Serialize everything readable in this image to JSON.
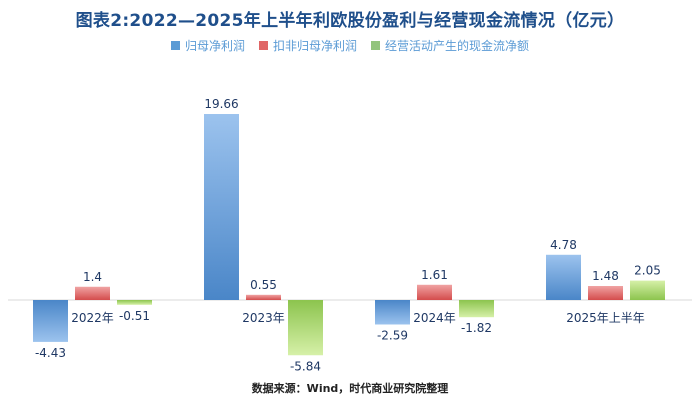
{
  "chart_data": {
    "type": "bar",
    "title": "图表2:2022—2025年上半年利欧股份盈利与经营现金流情况（亿元）",
    "categories": [
      "2022年",
      "2023年",
      "2024年",
      "2025年上半年"
    ],
    "series": [
      {
        "name": "归母净利润",
        "values": [
          -4.43,
          19.66,
          -2.59,
          4.78
        ],
        "color": "#5b9bd5"
      },
      {
        "name": "扣非归母净利润",
        "values": [
          1.4,
          0.55,
          1.61,
          1.48
        ],
        "color": "#e06666"
      },
      {
        "name": "经营活动产生的现金流净额",
        "values": [
          -0.51,
          -5.84,
          -1.82,
          2.05
        ],
        "color": "#93c47d"
      }
    ],
    "value_labels": [
      [
        "-4.43",
        "19.66",
        "-2.59",
        "4.78"
      ],
      [
        "1.4",
        "0.55",
        "1.61",
        "1.48"
      ],
      [
        "-0.51",
        "-5.84",
        "-1.82",
        "2.05"
      ]
    ],
    "xlabel": "",
    "ylabel": "",
    "grid": false,
    "legend_position": "top"
  },
  "source": "数据来源：Wind，时代商业研究院整理"
}
